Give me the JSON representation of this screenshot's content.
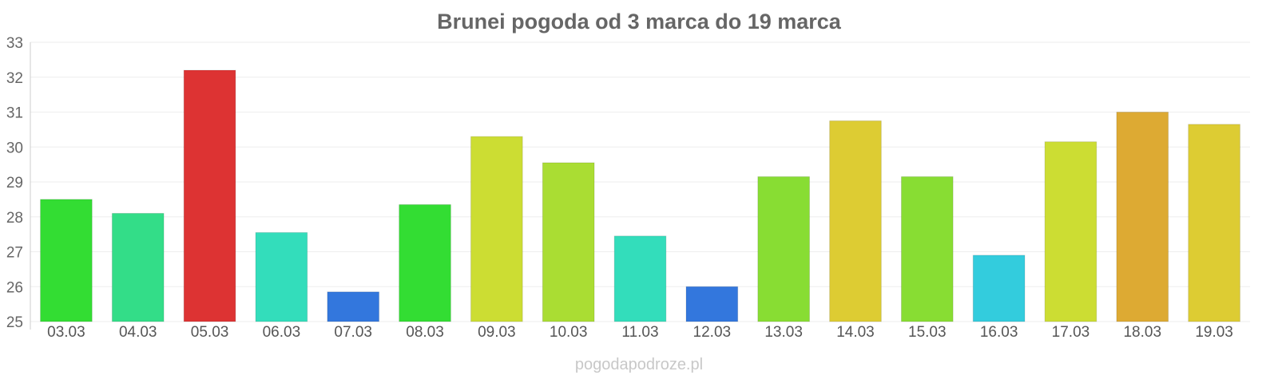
{
  "chart_data": {
    "type": "bar",
    "title": "Brunei pogoda od 3 marca do 19 marca",
    "xlabel": "",
    "ylabel": "",
    "ylim": [
      25,
      33
    ],
    "yticks": [
      25,
      26,
      27,
      28,
      29,
      30,
      31,
      32,
      33
    ],
    "grid": true,
    "categories": [
      "03.03",
      "04.03",
      "05.03",
      "06.03",
      "07.03",
      "08.03",
      "09.03",
      "10.03",
      "11.03",
      "12.03",
      "13.03",
      "14.03",
      "15.03",
      "16.03",
      "17.03",
      "18.03",
      "19.03"
    ],
    "values": [
      28.5,
      28.1,
      32.2,
      27.55,
      25.85,
      28.35,
      30.3,
      29.55,
      27.45,
      26.0,
      29.15,
      30.75,
      29.15,
      26.9,
      30.15,
      31.0,
      30.65
    ],
    "colors": [
      "#33dd33",
      "#33dd88",
      "#dd3333",
      "#33ddbb",
      "#3377dd",
      "#33dd33",
      "#ccdd33",
      "#aadd33",
      "#33ddbb",
      "#3377dd",
      "#88dd33",
      "#ddcc33",
      "#88dd33",
      "#33ccdd",
      "#ccdd33",
      "#ddaa33",
      "#ddcc33"
    ]
  },
  "watermark": "pogodapodroze.pl"
}
